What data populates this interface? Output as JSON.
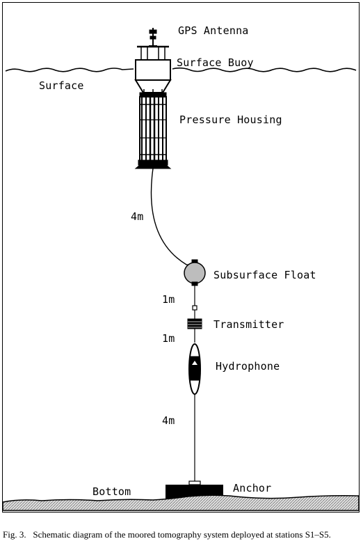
{
  "labels": {
    "gps_antenna": "GPS Antenna",
    "surface_buoy": "Surface Buoy",
    "surface": "Surface",
    "pressure_housing": "Pressure Housing",
    "segment_4m_upper": "4m",
    "subsurface_float": "Subsurface Float",
    "segment_1m_upper": "1m",
    "transmitter": "Transmitter",
    "segment_1m_lower": "1m",
    "hydrophone": "Hydrophone",
    "segment_4m_lower": "4m",
    "bottom": "Bottom",
    "anchor": "Anchor"
  },
  "caption": {
    "number": "Fig. 3.",
    "text": "Schematic diagram of the moored tomography system deployed at stations S1–S5."
  },
  "colors": {
    "ink": "#000000",
    "float_fill": "#bdbdbd",
    "seabed_fill": "#c8c8c8"
  }
}
